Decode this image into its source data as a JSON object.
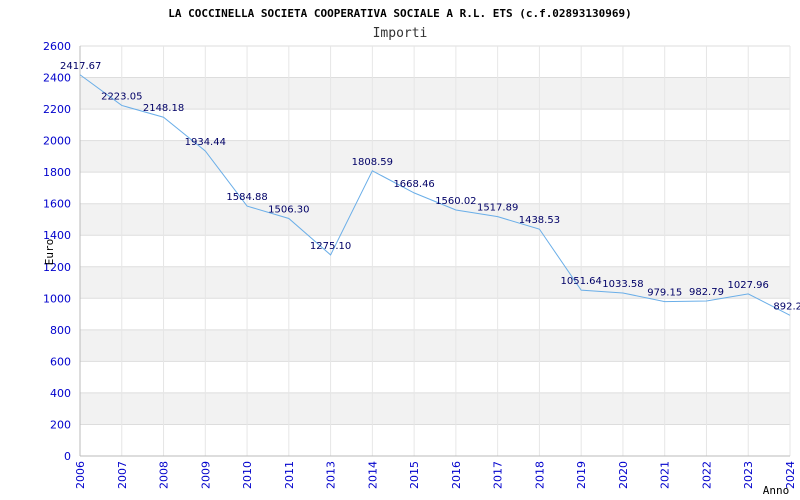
{
  "chart_data": {
    "type": "line",
    "title": "LA COCCINELLA SOCIETA COOPERATIVA SOCIALE A R.L. ETS (c.f.02893130969)",
    "subtitle": "Importi",
    "xlabel": "Anno",
    "ylabel": "Euro",
    "ylim": [
      0,
      2600
    ],
    "yticks": [
      0,
      200,
      400,
      600,
      800,
      1000,
      1200,
      1400,
      1600,
      1800,
      2000,
      2200,
      2400,
      2600
    ],
    "categories": [
      "2006",
      "2007",
      "2008",
      "2009",
      "2010",
      "2011",
      "2013",
      "2014",
      "2015",
      "2016",
      "2017",
      "2018",
      "2019",
      "2020",
      "2021",
      "2022",
      "2023",
      "2024"
    ],
    "values": [
      2417.67,
      2223.05,
      2148.18,
      1934.44,
      1584.88,
      1506.3,
      1275.1,
      1808.59,
      1668.46,
      1560.02,
      1517.89,
      1438.53,
      1051.64,
      1033.58,
      979.15,
      982.79,
      1027.96,
      892.2
    ],
    "value_labels": [
      "2417.67",
      "2223.05",
      "2148.18",
      "1934.44",
      "1584.88",
      "1506.30",
      "1275.10",
      "1808.59",
      "1668.46",
      "1560.02",
      "1517.89",
      "1438.53",
      "1051.64",
      "1033.58",
      "979.15",
      "982.79",
      "1027.96",
      "892.2"
    ],
    "grid": true,
    "colors": {
      "line": "#6aaee8",
      "band": "#f2f2f2",
      "tick": "#0000cc",
      "label": "#000066"
    }
  }
}
